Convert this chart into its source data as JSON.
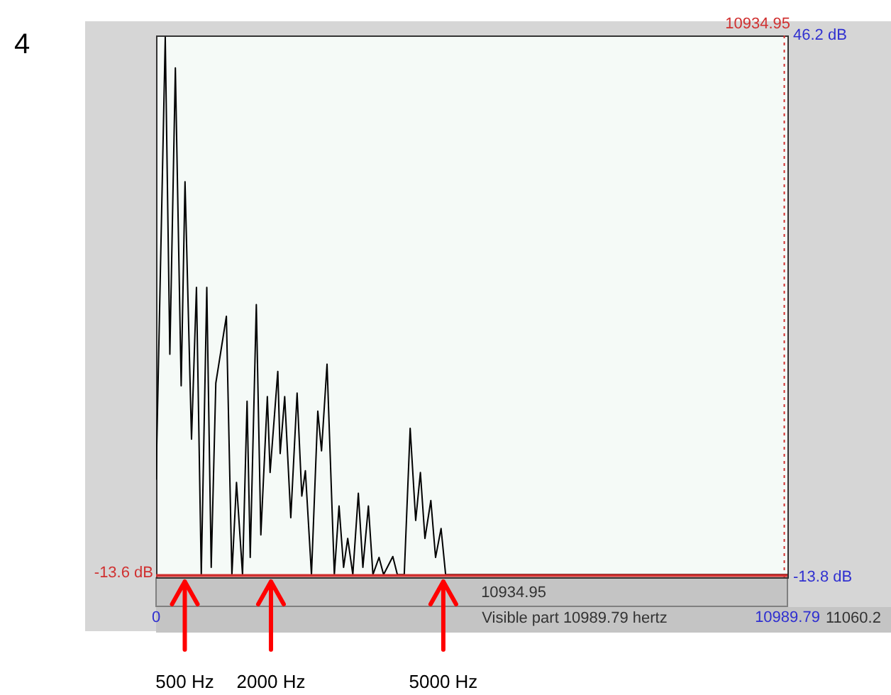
{
  "chart_data": {
    "type": "line",
    "x": [
      0,
      160,
      240,
      336,
      437,
      504,
      617,
      703,
      787,
      883,
      960,
      1040,
      1224,
      1320,
      1400,
      1505,
      1584,
      1639,
      1745,
      1824,
      1937,
      1985,
      2119,
      2160,
      2239,
      2345,
      2455,
      2537,
      2599,
      2705,
      2815,
      2880,
      2976,
      3103,
      3185,
      3264,
      3336,
      3425,
      3521,
      3600,
      3696,
      3775,
      3881,
      3960,
      4121,
      4200,
      4320,
      4423,
      4519,
      4601,
      4680,
      4783,
      4865,
      4961,
      5040,
      10989.79
    ],
    "series": [
      {
        "color": "#000000",
        "values": [
          -3,
          46,
          10.9,
          42.6,
          7.4,
          30,
          1.5,
          18.3,
          -13.5,
          18.3,
          -12.7,
          7.7,
          15.1,
          -13.5,
          -3.3,
          -13.5,
          5.7,
          -11.6,
          16.4,
          -9.1,
          6.2,
          -2.2,
          9,
          -0.1,
          6.2,
          -7.2,
          6.6,
          -4.8,
          -2,
          -13.5,
          4.6,
          0.2,
          9.8,
          -13.5,
          -5.9,
          -12.7,
          -9.5,
          -13.5,
          -4.5,
          -12.7,
          -5.9,
          -13.5,
          -11.6,
          -13.5,
          -11.5,
          -13.5,
          -13.5,
          2.7,
          -7.5,
          -2.2,
          -9.5,
          -5.3,
          -11.6,
          -8.4,
          -13.5,
          -13.5
        ]
      }
    ],
    "xlim": [
      0,
      10989.79
    ],
    "xticks": [
      0,
      10989.79
    ],
    "ylim": [
      -13.8,
      46.2
    ],
    "yticks": [
      {
        "value": 46.2,
        "label": "46.2 dB"
      },
      {
        "value": -13.8,
        "label": "-13.8 dB"
      }
    ],
    "grid": false,
    "marker": "none",
    "line_style": "solid",
    "legend": false,
    "ref_lines": [
      {
        "axis": "y",
        "value": -13.6,
        "label": "-13.6 dB",
        "color": "#d03030",
        "line_style": "solid"
      },
      {
        "axis": "x",
        "value": 10934.95,
        "label": "10934.95",
        "color": "#d03030",
        "line_style": "dotted"
      }
    ],
    "annotations": [
      "4",
      "10934.95",
      "Visible part 10989.79 hertz",
      "11060.2",
      {
        "text": "500 Hz",
        "x": 500,
        "y": -13.8
      },
      {
        "text": "2000 Hz",
        "x": 2000,
        "y": -13.8
      },
      {
        "text": "5000 Hz",
        "x": 5000,
        "y": -13.8
      }
    ]
  }
}
